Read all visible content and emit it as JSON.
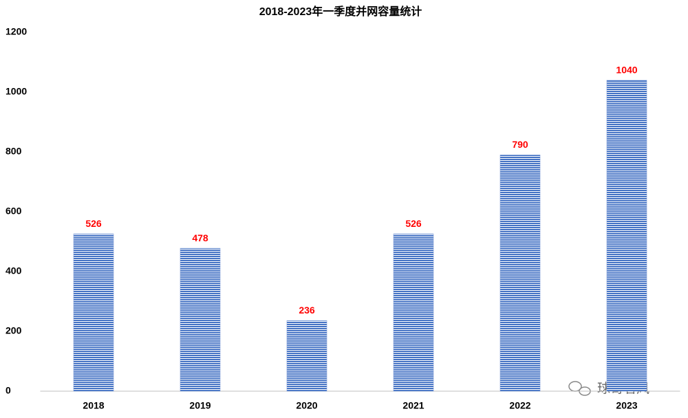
{
  "chart_data": {
    "type": "bar",
    "title": "2018-2023年一季度并网容量统计",
    "categories": [
      "2018",
      "2019",
      "2020",
      "2021",
      "2022",
      "2023"
    ],
    "values": [
      526,
      478,
      236,
      526,
      790,
      1040
    ],
    "color": "#4472c4",
    "ylim": [
      0,
      1200
    ],
    "yticks": [
      0,
      200,
      400,
      600,
      800,
      1000,
      1200
    ],
    "grid": false,
    "watermark": "球哥看风"
  }
}
